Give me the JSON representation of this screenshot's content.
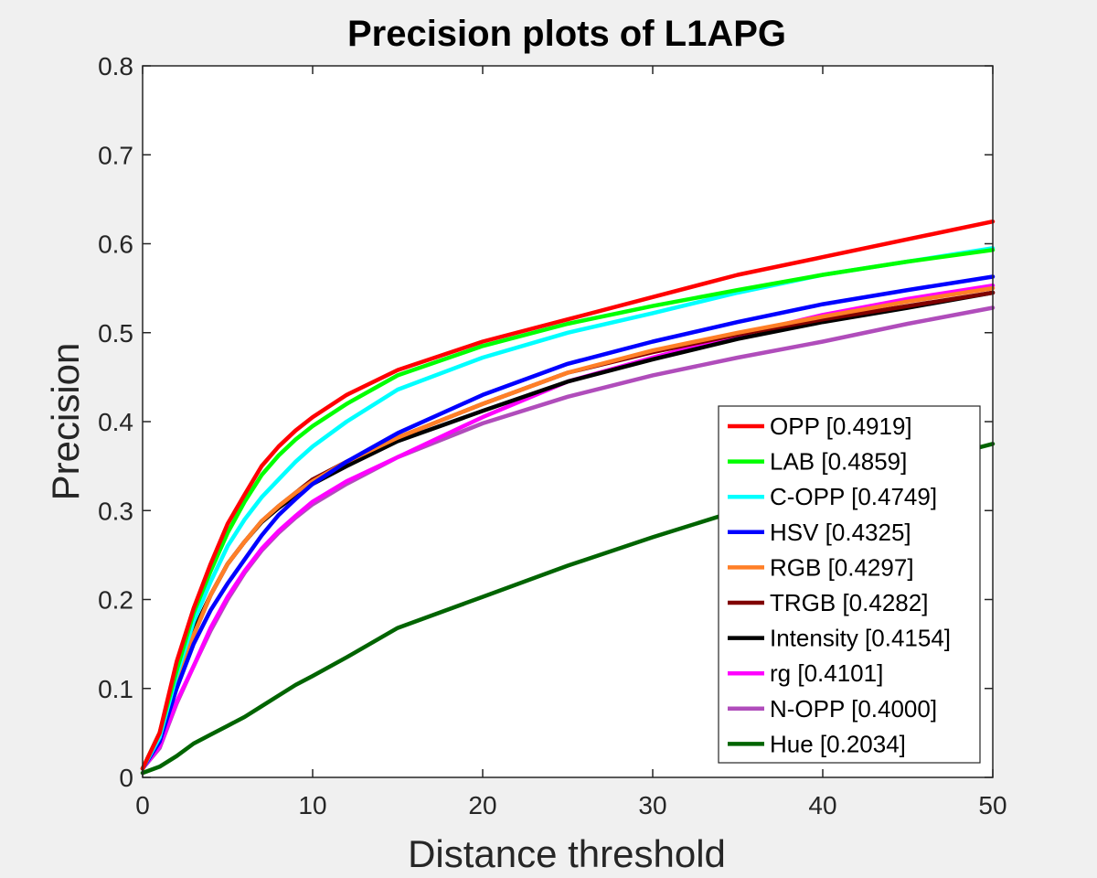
{
  "chart_data": {
    "type": "line",
    "title": "Precision plots of L1APG",
    "xlabel": "Distance threshold",
    "ylabel": "Precision",
    "xlim": [
      0,
      50
    ],
    "ylim": [
      0,
      0.8
    ],
    "xticks": [
      "0",
      "10",
      "20",
      "30",
      "40",
      "50"
    ],
    "yticks": [
      "0",
      "0.1",
      "0.2",
      "0.3",
      "0.4",
      "0.5",
      "0.6",
      "0.7",
      "0.8"
    ],
    "grid": false,
    "legend_position": "bottom-right",
    "x": [
      0,
      1,
      2,
      3,
      4,
      5,
      6,
      7,
      8,
      9,
      10,
      12,
      15,
      20,
      25,
      30,
      35,
      40,
      45,
      50
    ],
    "series": [
      {
        "name": "OPP [0.4919]",
        "color": "#ff0000",
        "values": [
          0.01,
          0.05,
          0.13,
          0.19,
          0.24,
          0.285,
          0.318,
          0.35,
          0.372,
          0.39,
          0.405,
          0.43,
          0.458,
          0.49,
          0.515,
          0.54,
          0.565,
          0.585,
          0.605,
          0.625
        ]
      },
      {
        "name": "LAB [0.4859]",
        "color": "#00ff00",
        "values": [
          0.01,
          0.05,
          0.12,
          0.185,
          0.232,
          0.275,
          0.31,
          0.34,
          0.362,
          0.38,
          0.395,
          0.42,
          0.452,
          0.485,
          0.51,
          0.53,
          0.548,
          0.565,
          0.58,
          0.593
        ]
      },
      {
        "name": "C-OPP [0.4749]",
        "color": "#00ffff",
        "values": [
          0.01,
          0.045,
          0.115,
          0.175,
          0.22,
          0.26,
          0.29,
          0.315,
          0.335,
          0.355,
          0.372,
          0.4,
          0.436,
          0.472,
          0.5,
          0.522,
          0.545,
          0.565,
          0.58,
          0.595
        ]
      },
      {
        "name": "HSV [0.4325]",
        "color": "#0000ff",
        "values": [
          0.01,
          0.04,
          0.1,
          0.15,
          0.188,
          0.218,
          0.245,
          0.272,
          0.295,
          0.313,
          0.33,
          0.355,
          0.387,
          0.43,
          0.465,
          0.49,
          0.512,
          0.532,
          0.548,
          0.563
        ]
      },
      {
        "name": "RGB [0.4297]",
        "color": "#ff7f27",
        "values": [
          0.01,
          0.045,
          0.11,
          0.16,
          0.205,
          0.24,
          0.265,
          0.288,
          0.305,
          0.32,
          0.333,
          0.355,
          0.382,
          0.42,
          0.455,
          0.48,
          0.5,
          0.518,
          0.535,
          0.55
        ]
      },
      {
        "name": "TRGB [0.4282]",
        "color": "#800000",
        "values": [
          0.01,
          0.045,
          0.11,
          0.16,
          0.205,
          0.24,
          0.265,
          0.288,
          0.305,
          0.32,
          0.335,
          0.355,
          0.382,
          0.42,
          0.455,
          0.478,
          0.498,
          0.515,
          0.53,
          0.545
        ]
      },
      {
        "name": "Intensity [0.4154]",
        "color": "#000000",
        "values": [
          0.01,
          0.045,
          0.11,
          0.165,
          0.205,
          0.24,
          0.265,
          0.287,
          0.303,
          0.317,
          0.33,
          0.35,
          0.378,
          0.412,
          0.445,
          0.47,
          0.493,
          0.512,
          0.528,
          0.545
        ]
      },
      {
        "name": "rg [0.4101]",
        "color": "#ff00ff",
        "values": [
          0.01,
          0.035,
          0.085,
          0.125,
          0.168,
          0.203,
          0.232,
          0.257,
          0.277,
          0.294,
          0.31,
          0.333,
          0.36,
          0.405,
          0.445,
          0.472,
          0.497,
          0.52,
          0.538,
          0.553
        ]
      },
      {
        "name": "N-OPP [0.4000]",
        "color": "#b04dbb",
        "values": [
          0.01,
          0.033,
          0.083,
          0.125,
          0.165,
          0.2,
          0.23,
          0.255,
          0.275,
          0.292,
          0.307,
          0.33,
          0.36,
          0.398,
          0.428,
          0.452,
          0.472,
          0.49,
          0.51,
          0.528
        ]
      },
      {
        "name": "Hue [0.2034]",
        "color": "#006400",
        "values": [
          0.005,
          0.012,
          0.024,
          0.038,
          0.048,
          0.058,
          0.068,
          0.08,
          0.092,
          0.104,
          0.114,
          0.135,
          0.168,
          0.203,
          0.238,
          0.27,
          0.3,
          0.325,
          0.35,
          0.375
        ]
      }
    ]
  }
}
